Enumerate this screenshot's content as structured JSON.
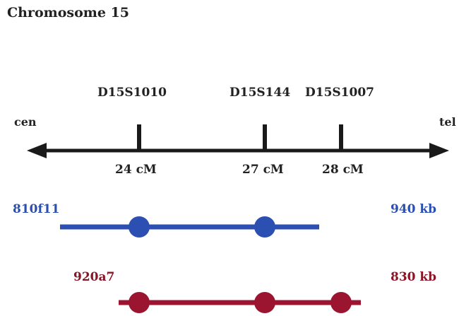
{
  "title": "Chromosome 15",
  "chromosome": {
    "left_end": "cen",
    "right_end": "tel",
    "markers": [
      {
        "name": "D15S1010",
        "position": "24 cM"
      },
      {
        "name": "D15S144",
        "position": "27 cM"
      },
      {
        "name": "D15S1007",
        "position": "28 cM"
      }
    ]
  },
  "clones": [
    {
      "name": "810f11",
      "size": "940 kb",
      "color": "#2c4fb2"
    },
    {
      "name": "920a7",
      "size": "830 kb",
      "color": "#9b1530"
    }
  ]
}
